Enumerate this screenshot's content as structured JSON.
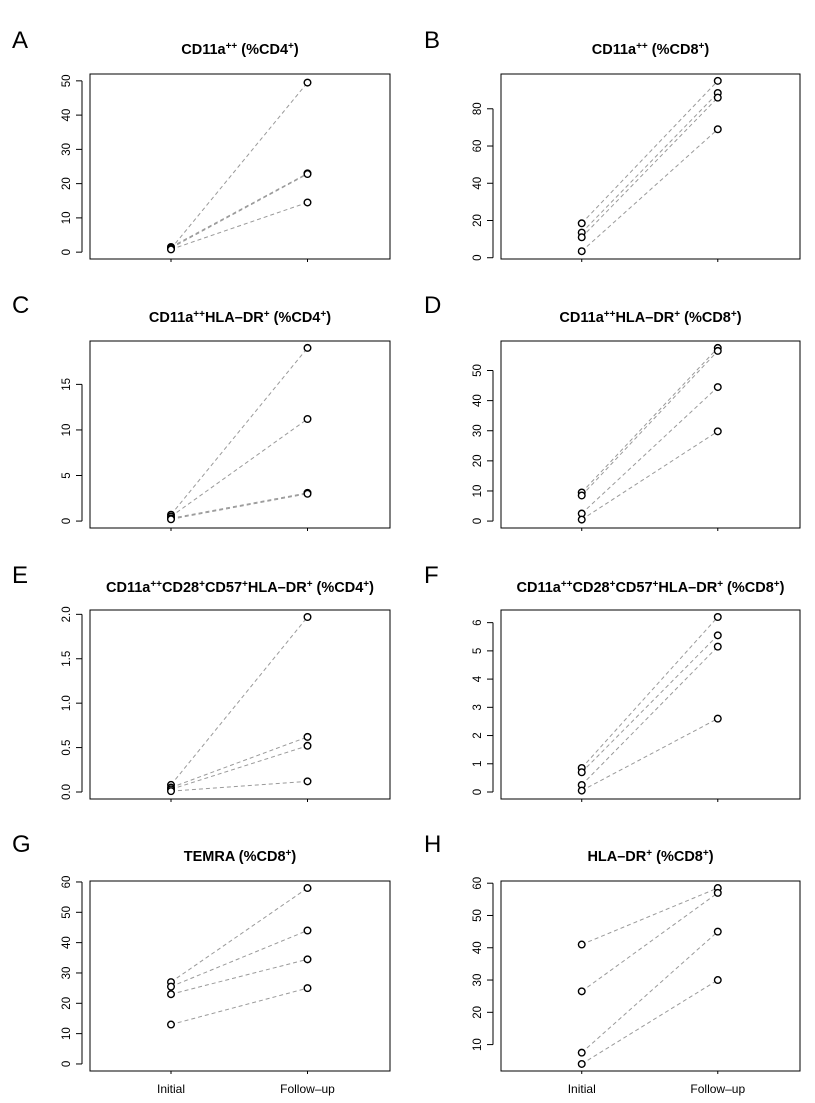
{
  "chart_data": [
    {
      "type": "scatter",
      "panel": "A",
      "title": "CD11a",
      "title_sup1": "++",
      "title_mid": " (%CD4",
      "title_sup2": "+",
      "title_end": ")",
      "categories": [
        "Initial",
        "Follow–up"
      ],
      "ylim": [
        0,
        50
      ],
      "yticks": [
        0,
        10,
        20,
        30,
        40,
        50
      ],
      "pairs": [
        [
          1.0,
          49.5
        ],
        [
          1.5,
          23.0
        ],
        [
          1.2,
          22.8
        ],
        [
          0.8,
          14.5
        ]
      ]
    },
    {
      "type": "scatter",
      "panel": "B",
      "title": "CD11a",
      "title_sup1": "++",
      "title_mid": " (%CD8",
      "title_sup2": "+",
      "title_end": ")",
      "categories": [
        "Initial",
        "Follow–up"
      ],
      "ylim": [
        3,
        95
      ],
      "yticks": [
        0,
        20,
        40,
        60,
        80
      ],
      "pairs": [
        [
          18.5,
          95.0
        ],
        [
          13.5,
          88.5
        ],
        [
          11.0,
          86.0
        ],
        [
          3.5,
          69.0
        ]
      ]
    },
    {
      "type": "scatter",
      "panel": "C",
      "title": "CD11a",
      "title_sup1": "++",
      "title_mid": "HLA–DR",
      "title_sup2": "+",
      "title_end": " (%CD4",
      "title_sup3": "+",
      "title_end2": ")",
      "categories": [
        "Initial",
        "Follow–up"
      ],
      "ylim": [
        0,
        19
      ],
      "yticks": [
        0,
        5,
        10,
        15
      ],
      "pairs": [
        [
          0.7,
          19.0
        ],
        [
          0.5,
          11.2
        ],
        [
          0.3,
          3.1
        ],
        [
          0.2,
          3.0
        ]
      ]
    },
    {
      "type": "scatter",
      "panel": "D",
      "title": "CD11a",
      "title_sup1": "++",
      "title_mid": "HLA–DR",
      "title_sup2": "+",
      "title_end": " (%CD8",
      "title_sup3": "+",
      "title_end2": ")",
      "categories": [
        "Initial",
        "Follow–up"
      ],
      "ylim": [
        0,
        57.5
      ],
      "yticks": [
        0,
        10,
        20,
        30,
        40,
        50
      ],
      "pairs": [
        [
          9.5,
          57.5
        ],
        [
          8.5,
          56.5
        ],
        [
          2.5,
          44.5
        ],
        [
          0.5,
          29.8
        ]
      ]
    },
    {
      "type": "scatter",
      "panel": "E",
      "title": "CD11a",
      "title_sup1": "++",
      "title_mid": "CD28",
      "title_sup2": "+",
      "title_end": "CD57",
      "title_sup3": "+",
      "title_end2": "HLA–DR",
      "title_sup4": "+",
      "title_end3": " (%CD4",
      "title_sup5": "+",
      "title_end4": ")",
      "categories": [
        "Initial",
        "Follow–up"
      ],
      "ylim": [
        0,
        1.97
      ],
      "yticks": [
        0.0,
        0.5,
        1.0,
        1.5,
        2.0
      ],
      "ytick_labels": [
        "0.0",
        "0.5",
        "1.0",
        "1.5",
        "2.0"
      ],
      "pairs": [
        [
          0.08,
          1.97
        ],
        [
          0.05,
          0.62
        ],
        [
          0.03,
          0.52
        ],
        [
          0.01,
          0.12
        ]
      ]
    },
    {
      "type": "scatter",
      "panel": "F",
      "title": "CD11a",
      "title_sup1": "++",
      "title_mid": "CD28",
      "title_sup2": "+",
      "title_end": "CD57",
      "title_sup3": "+",
      "title_end2": "HLA–DR",
      "title_sup4": "+",
      "title_end3": " (%CD8",
      "title_sup5": "+",
      "title_end4": ")",
      "categories": [
        "Initial",
        "Follow–up"
      ],
      "ylim": [
        0,
        6.2
      ],
      "yticks": [
        0,
        1,
        2,
        3,
        4,
        5,
        6
      ],
      "pairs": [
        [
          0.85,
          6.2
        ],
        [
          0.7,
          5.55
        ],
        [
          0.25,
          5.15
        ],
        [
          0.05,
          2.6
        ]
      ]
    },
    {
      "type": "scatter",
      "panel": "G",
      "title": "TEMRA (%CD8",
      "title_sup1": "+",
      "title_mid": ")",
      "categories": [
        "Initial",
        "Follow–up"
      ],
      "ylim": [
        0,
        58
      ],
      "yticks": [
        0,
        10,
        20,
        30,
        40,
        50,
        60
      ],
      "pairs": [
        [
          27.0,
          58.0
        ],
        [
          25.5,
          44.0
        ],
        [
          23.0,
          34.5
        ],
        [
          13.0,
          25.0
        ]
      ]
    },
    {
      "type": "scatter",
      "panel": "H",
      "title": "HLA–DR",
      "title_sup1": "+",
      "title_mid": " (%CD8",
      "title_sup2": "+",
      "title_end": ")",
      "categories": [
        "Initial",
        "Follow–up"
      ],
      "ylim": [
        4,
        58.5
      ],
      "yticks": [
        0,
        10,
        20,
        30,
        40,
        50,
        60
      ],
      "pairs": [
        [
          41.0,
          58.5
        ],
        [
          26.5,
          57.0
        ],
        [
          7.5,
          45.0
        ],
        [
          4.0,
          30.0
        ]
      ]
    }
  ]
}
